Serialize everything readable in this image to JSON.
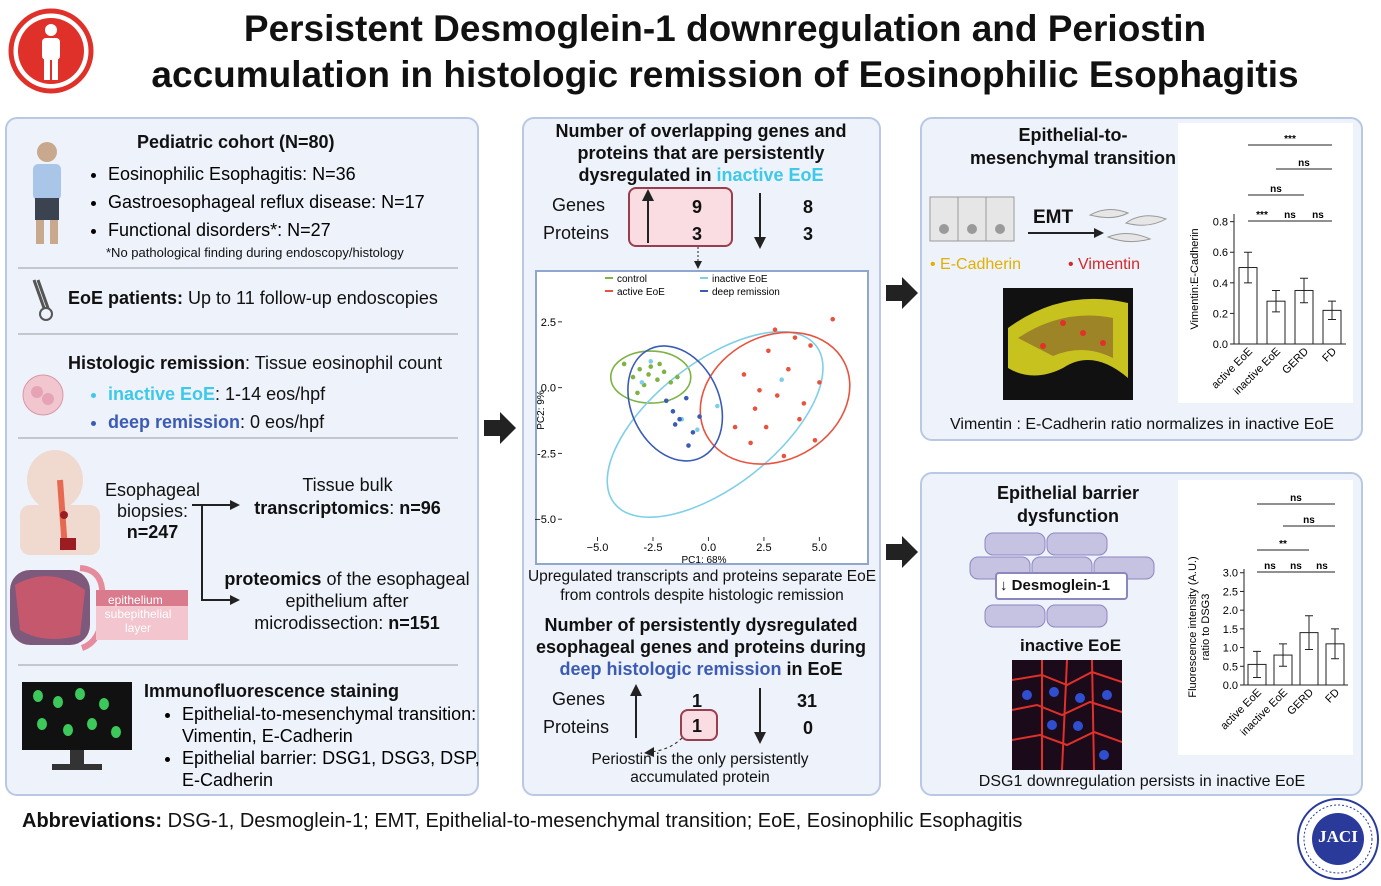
{
  "header": {
    "title_line1": "Persistent Desmoglein-1 downregulation and Periostin",
    "title_line2": "accumulation in histologic remission of Eosinophilic Esophagitis"
  },
  "cohort": {
    "title": "Pediatric cohort (N=80)",
    "items": [
      "Eosinophilic Esophagitis: N=36",
      "Gastroesophageal reflux disease: N=17",
      "Functional disorders*: N=27"
    ],
    "note": "*No pathological finding during endoscopy/histology"
  },
  "followup": {
    "label": "EoE patients:",
    "text": "Up to 11 follow-up endoscopies"
  },
  "remission": {
    "label": "Histologic remission",
    "text": ": Tissue eosinophil count",
    "inactive_label": "inactive EoE",
    "inactive_text": ": 1-14 eos/hpf",
    "deep_label": "deep remission",
    "deep_text": ": 0 eos/hpf"
  },
  "biopsies": {
    "label_line1": "Esophageal",
    "label_line2": "biopsies:",
    "n": "n=247",
    "transcriptomics_line1": "Tissue bulk",
    "transcriptomics_bold": "transcriptomics",
    "transcriptomics_text": ": ",
    "transcriptomics_n": "n=96",
    "proteomics_bold": "proteomics",
    "proteomics_text": " of the esophageal epithelium after microdissection: ",
    "proteomics_n": "n=151",
    "epithelium": "epithelium",
    "subepithelial": "subepithelial layer"
  },
  "staining": {
    "title": "Immunofluorescence staining",
    "items": [
      "Epithelial-to-mesenchymal transition: Vimentin, E-Cadherin",
      "Epithelial barrier: DSG1, DSG3, DSP, E-Cadherin"
    ]
  },
  "overlap": {
    "title": "Number of overlapping genes and proteins that are persistently dysregulated in ",
    "title_highlight": "inactive EoE",
    "row_labels": [
      "Genes",
      "Proteins"
    ],
    "up": [
      9,
      3
    ],
    "down": [
      8,
      3
    ]
  },
  "pca": {
    "type": "scatter",
    "xlabel": "PC1: 68%",
    "ylabel": "PC2: 9%",
    "xlim": [
      -6.6,
      7.1
    ],
    "ylim": [
      -5.6,
      3.9
    ],
    "xticks": [
      {
        "value": -5,
        "label": "−5.0"
      },
      -2.5,
      {
        "value": 0,
        "label": "0.0"
      },
      2.5,
      {
        "value": 5,
        "label": "5.0"
      }
    ],
    "yticks": [
      2.5,
      {
        "value": 0,
        "label": "0.0"
      },
      -2.5,
      {
        "value": -5,
        "label": "−5.0"
      }
    ],
    "series": [
      {
        "name": "control",
        "color": "#7cb342",
        "x": [
          -3.8,
          -3.4,
          -3.1,
          -2.9,
          -2.6,
          -2.3,
          -2.0,
          -1.7,
          -3.2,
          -2.7,
          -2.2,
          -1.4
        ],
        "y": [
          0.9,
          0.4,
          0.7,
          0.1,
          0.8,
          0.3,
          0.6,
          0.2,
          -0.2,
          0.5,
          0.9,
          0.4
        ]
      },
      {
        "name": "inactive EoE",
        "color": "#7fcfe8",
        "x": [
          -3.0,
          -1.2,
          -0.5,
          0.4,
          3.3,
          -2.6
        ],
        "y": [
          0.2,
          -1.2,
          -1.6,
          -0.7,
          0.3,
          1.0
        ]
      },
      {
        "name": "active EoE",
        "color": "#e8533f",
        "x": [
          1.6,
          2.1,
          2.7,
          3.1,
          3.6,
          4.1,
          4.6,
          5.0,
          1.9,
          2.6,
          3.4,
          4.3,
          2.3,
          3.0,
          3.9,
          1.2,
          4.8,
          5.6
        ],
        "y": [
          0.5,
          -0.8,
          1.4,
          -0.3,
          0.7,
          -1.2,
          1.6,
          0.2,
          -2.1,
          -1.5,
          -2.6,
          -0.6,
          -0.1,
          2.2,
          1.9,
          -1.5,
          -2.0,
          2.6
        ]
      },
      {
        "name": "deep remission",
        "color": "#3b5bb5",
        "x": [
          -1.9,
          -1.6,
          -1.3,
          -1.0,
          -0.7,
          -0.4,
          -1.5,
          -0.9
        ],
        "y": [
          -0.5,
          -0.9,
          -1.2,
          -0.4,
          -1.7,
          -1.1,
          -1.4,
          -2.2
        ]
      }
    ],
    "caption": "Upregulated transcripts and proteins separate EoE from controls despite histologic remission"
  },
  "deep": {
    "title": "Number of persistently dysregulated esophageal genes and proteins during ",
    "title_highlight": "deep histologic remission",
    "title_end": " in EoE",
    "row_labels": [
      "Genes",
      "Proteins"
    ],
    "up": [
      1,
      1
    ],
    "down": [
      31,
      0
    ],
    "note": "Periostin is the only persistently accumulated protein"
  },
  "emt": {
    "title": "Epithelial-to-mesenchymal transition",
    "emt_label": "EMT",
    "ecad": "E-Cadherin",
    "vim": "Vimentin",
    "caption": "Vimentin : E-Cadherin ratio normalizes in inactive EoE",
    "chart": {
      "type": "bar",
      "ylabel": "Vimentin:E-Cadherin",
      "categories": [
        "active EoE",
        "inactive EoE",
        "GERD",
        "FD"
      ],
      "values": [
        0.5,
        0.28,
        0.35,
        0.22
      ],
      "errors": [
        0.1,
        0.07,
        0.08,
        0.06
      ],
      "color": "#ffffff",
      "ylim": [
        0,
        0.85
      ],
      "yticks": [
        {
          "value": 0,
          "label": "0.0"
        },
        0.2,
        0.4,
        0.6,
        0.8
      ],
      "significance": [
        "***",
        "ns",
        "ns",
        "***",
        "ns",
        "ns"
      ]
    }
  },
  "barrier": {
    "title": "Epithelial barrier dysfunction",
    "protein": "Desmoglein-1",
    "group": "inactive EoE",
    "caption": "DSG1 downregulation persists in inactive EoE",
    "chart": {
      "type": "bar",
      "ylabel": "Fluorescence intensity (A.U.) ratio to DSG3",
      "categories": [
        "active EoE",
        "inactive EoE",
        "GERD",
        "FD"
      ],
      "values": [
        0.55,
        0.8,
        1.4,
        1.1
      ],
      "errors": [
        0.35,
        0.3,
        0.45,
        0.4
      ],
      "color": "#ffffff",
      "ylim": [
        0,
        3.1
      ],
      "yticks": [
        {
          "value": 0,
          "label": "0.0"
        },
        0.5,
        {
          "value": 1,
          "label": "1.0"
        },
        1.5,
        {
          "value": 2,
          "label": "2.0"
        },
        2.5,
        {
          "value": 3,
          "label": "3.0"
        }
      ],
      "significance": [
        "ns",
        "ns",
        "**",
        "ns",
        "ns",
        "ns"
      ]
    }
  },
  "footer": {
    "label": "Abbreviations:",
    "text": "DSG-1, Desmoglein-1; EMT, Epithelial-to-mesenchymal transition; EoE, Eosinophilic Esophagitis"
  },
  "logo": {
    "text": "JACI"
  }
}
